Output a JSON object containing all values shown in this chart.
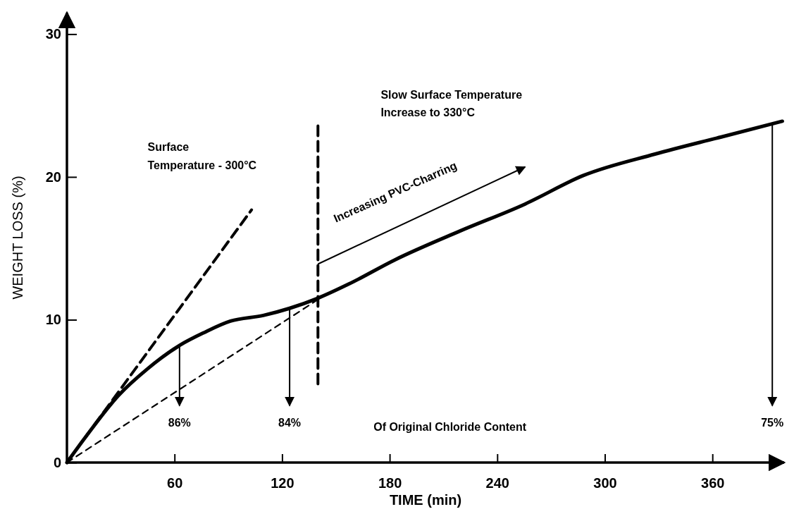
{
  "chart_data": {
    "type": "line",
    "xlabel": "TIME (min)",
    "ylabel": "WEIGHT LOSS (%)",
    "xlim": [
      0,
      400
    ],
    "ylim": [
      0,
      31.5
    ],
    "xticks": [
      60,
      120,
      180,
      240,
      300,
      360
    ],
    "yticks": [
      0,
      10,
      20,
      30
    ],
    "grid": false,
    "marker": "none",
    "series": [
      {
        "color": "#000000",
        "line_style": "solid",
        "x": [
          0,
          10.5,
          28.8,
          45.3,
          62.8,
          76.5,
          91.2,
          109.5,
          124.2,
          139.8,
          157.2,
          183,
          219,
          255.5,
          288,
          328,
          365,
          399
        ],
        "values": [
          0,
          1.8,
          4.7,
          6.6,
          8.2,
          9.1,
          9.9,
          10.3,
          10.8,
          11.5,
          12.5,
          14.2,
          16.2,
          18.1,
          20.1,
          21.6,
          22.8,
          23.9
        ]
      },
      {
        "color": "#000000",
        "line_style": "dashed",
        "x": [
          0,
          103
        ],
        "values": [
          0,
          17.7
        ]
      },
      {
        "color": "#000000",
        "line_style": "dashed",
        "x": [
          0,
          139.8
        ],
        "values": [
          0,
          11.4
        ]
      },
      {
        "color": "#000000",
        "line_style": "dashed",
        "x": [
          140,
          140
        ],
        "values": [
          5.5,
          23.7
        ]
      }
    ],
    "annotations": [
      "86%",
      "84%",
      "75%",
      "Of Original Chloride Content",
      "Surface\nTemperature - 300°C",
      "Slow Surface Temperature\nIncrease to 330°C",
      "Increasing PVC-Charring"
    ]
  }
}
